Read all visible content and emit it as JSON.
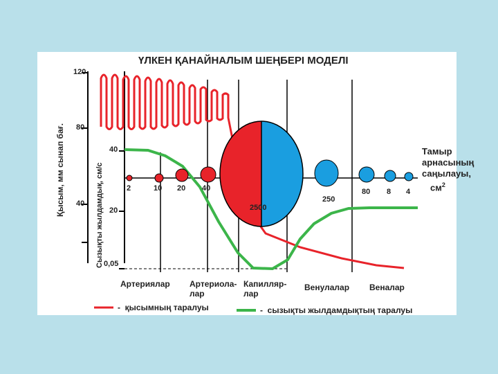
{
  "title": "ҮЛКЕН ҚАНАЙНАЛЫМ ШЕҢБЕРІ МОДЕЛІ",
  "axis_pressure": {
    "label": "Қысым, мм сынап бағ.",
    "ticks": [
      "120",
      "80",
      "40"
    ]
  },
  "axis_velocity": {
    "label": "Сызықты жылдамдық, см/с",
    "ticks": [
      "40",
      "20",
      "0,05"
    ]
  },
  "area_label": {
    "line1": "Тамыр",
    "line2": "арнасының",
    "line3": "саңылауы,",
    "unit": "см",
    "unit_sup": "2"
  },
  "vessel_values": [
    "2",
    "10",
    "20",
    "40",
    "2500",
    "250",
    "80",
    "8",
    "4"
  ],
  "categories": [
    {
      "line1": "Артериялар",
      "line2": ""
    },
    {
      "line1": "Артериола-",
      "line2": "лар"
    },
    {
      "line1": "Капилляр-",
      "line2": "лар"
    },
    {
      "line1": "Венулалар",
      "line2": ""
    },
    {
      "line1": "Веналар",
      "line2": ""
    }
  ],
  "legend": [
    {
      "dash": "-",
      "text": "қысымның таралуы",
      "color": "#e8232a"
    },
    {
      "dash": "-",
      "text": "сызықты жылдамдықтың таралуы",
      "color": "#3cb54a"
    }
  ],
  "colors": {
    "pressure": "#e8232a",
    "velocity": "#3cb54a",
    "capillary_left": "#e8232a",
    "capillary_right": "#1a9ee0",
    "venous": "#1a9ee0",
    "arterial": "#e8232a"
  }
}
